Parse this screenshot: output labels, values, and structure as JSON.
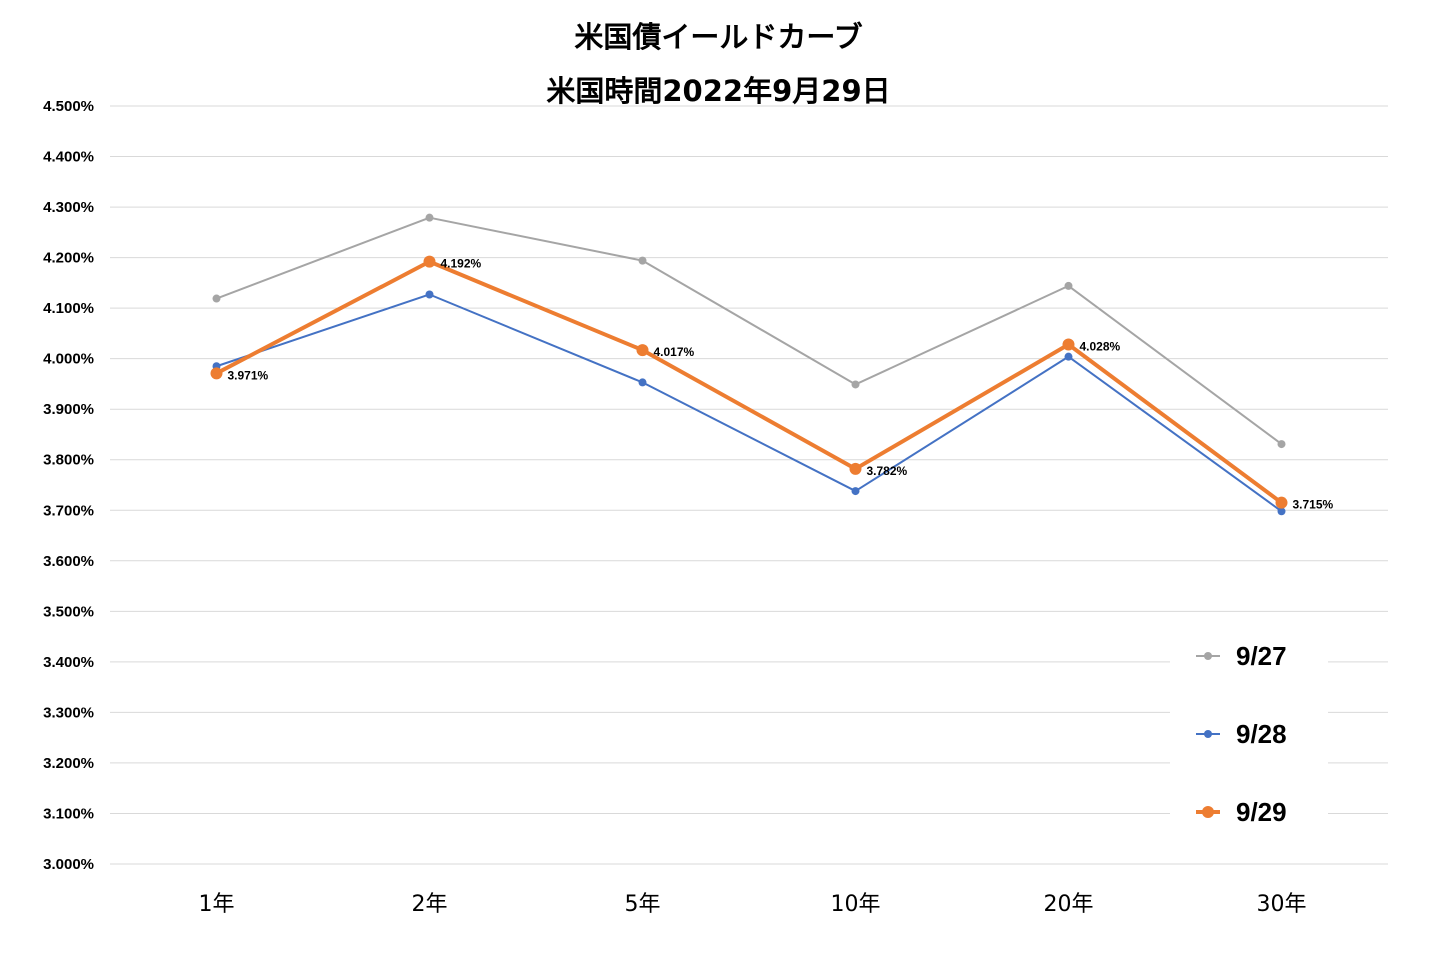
{
  "chart_data": {
    "type": "line",
    "title": "米国債イールドカーブ",
    "subtitle": "米国時間2022年9月29日",
    "categories": [
      "1年",
      "2年",
      "5年",
      "10年",
      "20年",
      "30年"
    ],
    "y_ticks": [
      "3.000%",
      "3.100%",
      "3.200%",
      "3.300%",
      "3.400%",
      "3.500%",
      "3.600%",
      "3.700%",
      "3.800%",
      "3.900%",
      "4.000%",
      "4.100%",
      "4.200%",
      "4.300%",
      "4.400%",
      "4.500%"
    ],
    "ylim": [
      3.0,
      4.5
    ],
    "grid": true,
    "legend_position": "bottom-right",
    "series": [
      {
        "name": "9/27",
        "color": "#A5A5A5",
        "values": [
          4.119,
          4.279,
          4.194,
          3.949,
          4.144,
          3.831
        ],
        "data_labels": []
      },
      {
        "name": "9/28",
        "color": "#4472C4",
        "values": [
          3.985,
          4.127,
          3.953,
          3.738,
          4.004,
          3.698
        ],
        "data_labels": []
      },
      {
        "name": "9/29",
        "color": "#ED7D31",
        "values": [
          3.971,
          4.192,
          4.017,
          3.782,
          4.028,
          3.715
        ],
        "data_labels": [
          "3.971%",
          "4.192%",
          "4.017%",
          "3.782%",
          "4.028%",
          "3.715%"
        ]
      }
    ]
  }
}
